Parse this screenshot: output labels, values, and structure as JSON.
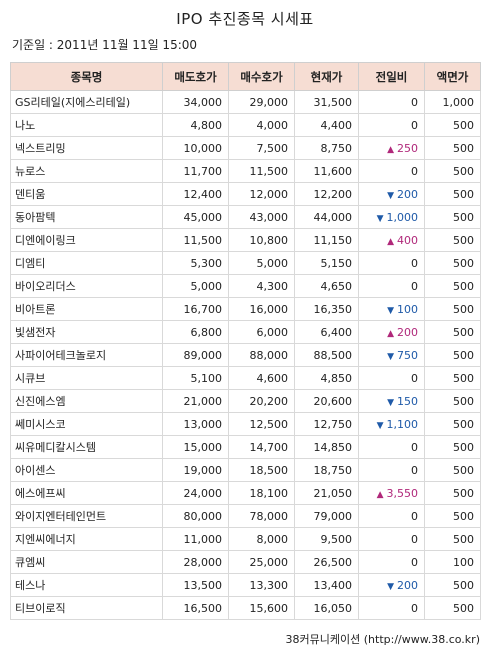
{
  "title": "IPO 추진종목 시세표",
  "base_date": "기준일 : 2011년 11월 11일 15:00",
  "headers": [
    "종목명",
    "매도호가",
    "매수호가",
    "현재가",
    "전일비",
    "액면가"
  ],
  "rows": [
    {
      "name": "GS리테일(지에스리테일)",
      "sell": "34,000",
      "buy": "29,000",
      "price": "31,500",
      "dir": "",
      "change": "0",
      "par": "1,000"
    },
    {
      "name": "나노",
      "sell": "4,800",
      "buy": "4,000",
      "price": "4,400",
      "dir": "",
      "change": "0",
      "par": "500"
    },
    {
      "name": "넥스트리밍",
      "sell": "10,000",
      "buy": "7,500",
      "price": "8,750",
      "dir": "up",
      "change": "250",
      "par": "500"
    },
    {
      "name": "뉴로스",
      "sell": "11,700",
      "buy": "11,500",
      "price": "11,600",
      "dir": "",
      "change": "0",
      "par": "500"
    },
    {
      "name": "덴티움",
      "sell": "12,400",
      "buy": "12,000",
      "price": "12,200",
      "dir": "down",
      "change": "200",
      "par": "500"
    },
    {
      "name": "동아팜텍",
      "sell": "45,000",
      "buy": "43,000",
      "price": "44,000",
      "dir": "down",
      "change": "1,000",
      "par": "500"
    },
    {
      "name": "디엔에이링크",
      "sell": "11,500",
      "buy": "10,800",
      "price": "11,150",
      "dir": "up",
      "change": "400",
      "par": "500"
    },
    {
      "name": "디엠티",
      "sell": "5,300",
      "buy": "5,000",
      "price": "5,150",
      "dir": "",
      "change": "0",
      "par": "500"
    },
    {
      "name": "바이오리더스",
      "sell": "5,000",
      "buy": "4,300",
      "price": "4,650",
      "dir": "",
      "change": "0",
      "par": "500"
    },
    {
      "name": "비아트론",
      "sell": "16,700",
      "buy": "16,000",
      "price": "16,350",
      "dir": "down",
      "change": "100",
      "par": "500"
    },
    {
      "name": "빛샘전자",
      "sell": "6,800",
      "buy": "6,000",
      "price": "6,400",
      "dir": "up",
      "change": "200",
      "par": "500"
    },
    {
      "name": "사파이어테크놀로지",
      "sell": "89,000",
      "buy": "88,000",
      "price": "88,500",
      "dir": "down",
      "change": "750",
      "par": "500"
    },
    {
      "name": "시큐브",
      "sell": "5,100",
      "buy": "4,600",
      "price": "4,850",
      "dir": "",
      "change": "0",
      "par": "500"
    },
    {
      "name": "신진에스엠",
      "sell": "21,000",
      "buy": "20,200",
      "price": "20,600",
      "dir": "down",
      "change": "150",
      "par": "500"
    },
    {
      "name": "쎄미시스코",
      "sell": "13,000",
      "buy": "12,500",
      "price": "12,750",
      "dir": "down",
      "change": "1,100",
      "par": "500"
    },
    {
      "name": "씨유메디칼시스템",
      "sell": "15,000",
      "buy": "14,700",
      "price": "14,850",
      "dir": "",
      "change": "0",
      "par": "500"
    },
    {
      "name": "아이센스",
      "sell": "19,000",
      "buy": "18,500",
      "price": "18,750",
      "dir": "",
      "change": "0",
      "par": "500"
    },
    {
      "name": "에스에프씨",
      "sell": "24,000",
      "buy": "18,100",
      "price": "21,050",
      "dir": "up",
      "change": "3,550",
      "par": "500"
    },
    {
      "name": "와이지엔터테인먼트",
      "sell": "80,000",
      "buy": "78,000",
      "price": "79,000",
      "dir": "",
      "change": "0",
      "par": "500"
    },
    {
      "name": "지엔씨에너지",
      "sell": "11,000",
      "buy": "8,000",
      "price": "9,500",
      "dir": "",
      "change": "0",
      "par": "500"
    },
    {
      "name": "큐엠씨",
      "sell": "28,000",
      "buy": "25,000",
      "price": "26,500",
      "dir": "",
      "change": "0",
      "par": "100"
    },
    {
      "name": "테스나",
      "sell": "13,500",
      "buy": "13,300",
      "price": "13,400",
      "dir": "down",
      "change": "200",
      "par": "500"
    },
    {
      "name": "티브이로직",
      "sell": "16,500",
      "buy": "15,600",
      "price": "16,050",
      "dir": "",
      "change": "0",
      "par": "500"
    }
  ],
  "arrows": {
    "up": "▲",
    "down": "▼"
  },
  "colors": {
    "header_bg": "#f6ddd3",
    "up": "#b0287a",
    "down": "#1f5aa8"
  },
  "source": "38커뮤니케이션 (http://www.38.co.kr)"
}
